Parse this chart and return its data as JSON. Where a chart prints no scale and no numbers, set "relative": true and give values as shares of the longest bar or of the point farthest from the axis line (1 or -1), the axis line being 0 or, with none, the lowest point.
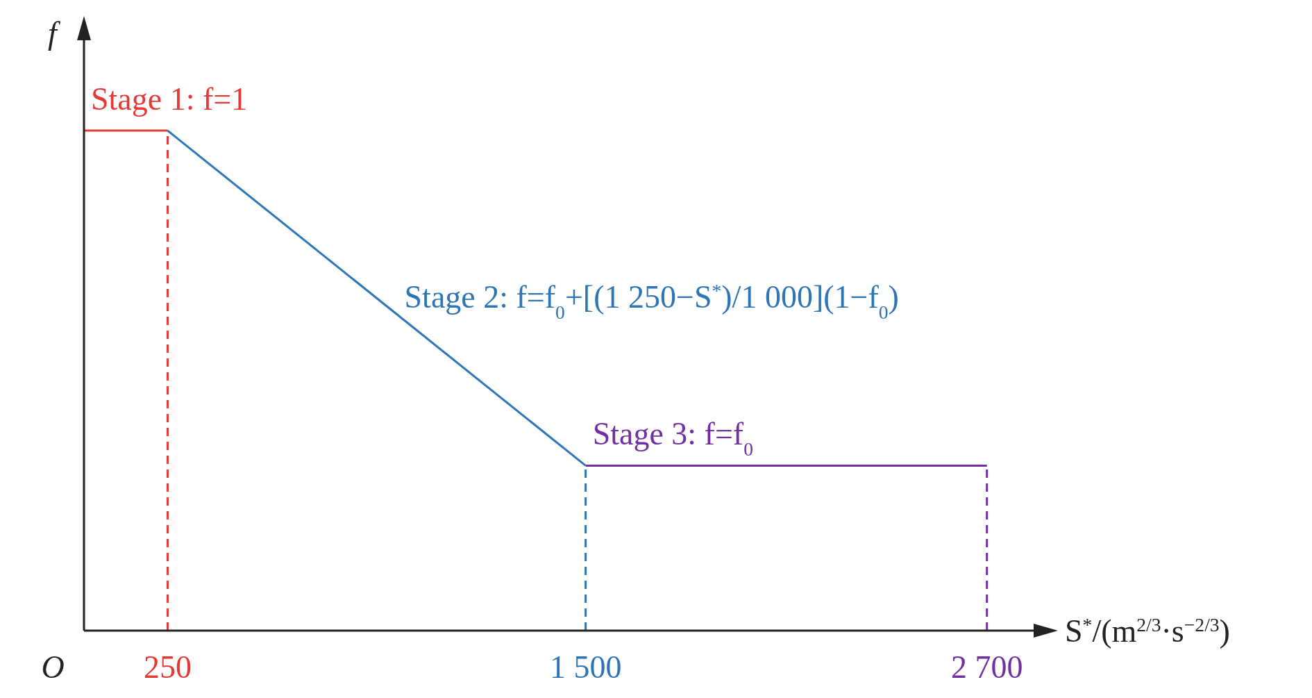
{
  "chart_data": {
    "type": "line",
    "relative": true,
    "xlabel": "S$^{*}$/(m$^{2/3}$·s$^{−2/3}$)",
    "ylabel": "f",
    "xlim": [
      0,
      2850
    ],
    "annotations": [
      "O"
    ],
    "xticks": [
      250,
      {
        "value": 1500,
        "label": "1 500"
      },
      {
        "value": 2700,
        "label": "2 700"
      }
    ],
    "series": [
      {
        "name": "Stage 1: f=1",
        "color": "#e53935",
        "x": [
          0,
          250
        ],
        "values": [
          1,
          1
        ]
      },
      {
        "name": "Stage 2: f=f$_{0}$+[(1 250−S$^{*}$)/1 000](1−f$_{0}$)",
        "color": "#2e75b6",
        "x": [
          250,
          1500
        ],
        "values": [
          1,
          0.33
        ]
      },
      {
        "name": "Stage 3: f=f$_{0}$",
        "color": "#7030a0",
        "x": [
          1500,
          2700
        ],
        "values": [
          0.33,
          0.33
        ]
      }
    ],
    "ref_lines": [
      {
        "axis": "x",
        "value": 250,
        "color": "#e53935",
        "line_style": "dashed"
      },
      {
        "axis": "x",
        "value": 1500,
        "color": "#2e75b6",
        "line_style": "dashed"
      },
      {
        "axis": "x",
        "value": 2700,
        "color": "#7030a0",
        "line_style": "dashed"
      }
    ],
    "grid": false,
    "marker": "none",
    "line_style": "solid"
  }
}
